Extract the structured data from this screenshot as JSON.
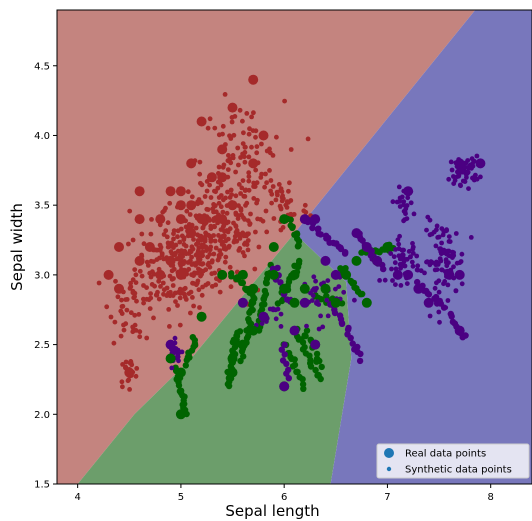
{
  "chart_data": {
    "type": "scatter",
    "title": "",
    "xlabel": "Sepal length",
    "ylabel": "Sepal width",
    "xlim": [
      3.8,
      8.4
    ],
    "ylim": [
      1.5,
      4.9
    ],
    "x_ticks": [
      4,
      5,
      6,
      7,
      8
    ],
    "y_ticks": [
      1.5,
      2.0,
      2.5,
      3.0,
      3.5,
      4.0,
      4.5
    ],
    "x_tick_labels": [
      "4",
      "5",
      "6",
      "7",
      "8"
    ],
    "y_tick_labels": [
      "1.5",
      "2.0",
      "2.5",
      "3.0",
      "3.5",
      "4.0",
      "4.5"
    ],
    "grid": false,
    "legend_position": "bottom-right",
    "legend": [
      {
        "label": "Real data points",
        "marker": "large-dot",
        "color": "#1f77b4"
      },
      {
        "label": "Synthetic data points",
        "marker": "small-dot",
        "color": "#1f77b4"
      }
    ],
    "regions": [
      {
        "color": "#c4847f",
        "polygon": [
          [
            3.8,
            1.5
          ],
          [
            3.8,
            4.9
          ],
          [
            7.85,
            4.9
          ],
          [
            6.1,
            3.3
          ],
          [
            5.1,
            2.4
          ],
          [
            4.55,
            2.0
          ],
          [
            4.0,
            1.5
          ]
        ]
      },
      {
        "color": "#6c9e6b",
        "polygon": [
          [
            4.0,
            1.5
          ],
          [
            4.55,
            2.0
          ],
          [
            5.1,
            2.4
          ],
          [
            6.1,
            3.3
          ],
          [
            6.6,
            2.95
          ],
          [
            6.65,
            2.4
          ],
          [
            6.45,
            1.5
          ]
        ]
      },
      {
        "color": "#7877bc",
        "polygon": [
          [
            7.85,
            4.9
          ],
          [
            8.4,
            4.9
          ],
          [
            8.4,
            1.5
          ],
          [
            6.45,
            1.5
          ],
          [
            6.65,
            2.4
          ],
          [
            6.6,
            2.95
          ],
          [
            6.1,
            3.3
          ]
        ]
      }
    ],
    "series": [
      {
        "class": "red",
        "color": "#a52a2a",
        "real_points": [
          [
            4.3,
            3.0
          ],
          [
            4.4,
            2.9
          ],
          [
            4.4,
            3.2
          ],
          [
            4.5,
            2.3
          ],
          [
            4.6,
            3.1
          ],
          [
            4.6,
            3.4
          ],
          [
            4.6,
            3.6
          ],
          [
            4.7,
            3.2
          ],
          [
            4.8,
            3.0
          ],
          [
            4.8,
            3.4
          ],
          [
            4.9,
            3.1
          ],
          [
            5.0,
            3.0
          ],
          [
            5.0,
            3.4
          ],
          [
            5.0,
            3.5
          ],
          [
            5.0,
            3.6
          ],
          [
            5.1,
            3.5
          ],
          [
            5.1,
            3.8
          ],
          [
            5.1,
            3.3
          ],
          [
            5.2,
            3.4
          ],
          [
            5.2,
            4.1
          ],
          [
            5.3,
            3.7
          ],
          [
            5.4,
            3.9
          ],
          [
            5.4,
            3.4
          ],
          [
            5.5,
            4.2
          ],
          [
            5.5,
            3.5
          ],
          [
            5.7,
            4.4
          ],
          [
            5.7,
            3.8
          ],
          [
            5.8,
            4.0
          ],
          [
            4.9,
            3.6
          ],
          [
            5.4,
            3.7
          ]
        ],
        "clusters": [
          {
            "center": [
              4.95,
              3.05
            ],
            "spread": [
              0.2,
              0.16
            ],
            "count": 160
          },
          {
            "center": [
              5.2,
              3.25
            ],
            "spread": [
              0.2,
              0.18
            ],
            "count": 170
          },
          {
            "center": [
              5.45,
              3.35
            ],
            "spread": [
              0.18,
              0.2
            ],
            "count": 120
          },
          {
            "center": [
              4.55,
              2.8
            ],
            "spread": [
              0.12,
              0.14
            ],
            "count": 50
          },
          {
            "center": [
              4.5,
              2.3
            ],
            "spread": [
              0.05,
              0.05
            ],
            "count": 20
          },
          {
            "center": [
              5.6,
              3.8
            ],
            "spread": [
              0.2,
              0.22
            ],
            "count": 90
          },
          {
            "center": [
              6.0,
              3.5
            ],
            "spread": [
              0.12,
              0.12
            ],
            "count": 40
          }
        ]
      },
      {
        "class": "green",
        "color": "#006400",
        "real_points": [
          [
            4.9,
            2.4
          ],
          [
            5.0,
            2.0
          ],
          [
            5.0,
            2.3
          ],
          [
            5.2,
            2.7
          ],
          [
            5.5,
            2.3
          ],
          [
            5.5,
            2.4
          ],
          [
            5.6,
            2.5
          ],
          [
            5.7,
            2.6
          ],
          [
            5.8,
            2.7
          ],
          [
            5.9,
            3.0
          ],
          [
            6.0,
            2.2
          ],
          [
            6.0,
            2.9
          ],
          [
            6.1,
            2.8
          ],
          [
            6.2,
            2.9
          ],
          [
            6.3,
            2.5
          ],
          [
            6.4,
            2.9
          ],
          [
            6.6,
            3.0
          ],
          [
            6.7,
            3.1
          ],
          [
            6.8,
            2.8
          ],
          [
            6.9,
            3.1
          ],
          [
            7.0,
            3.2
          ],
          [
            5.6,
            3.0
          ],
          [
            5.4,
            3.0
          ],
          [
            5.7,
            2.9
          ],
          [
            6.0,
            3.4
          ],
          [
            5.9,
            3.2
          ],
          [
            6.5,
            2.8
          ],
          [
            6.1,
            3.0
          ]
        ],
        "lines": [
          {
            "from": [
              4.95,
              2.35
            ],
            "to": [
              5.05,
              2.0
            ],
            "count": 22
          },
          {
            "from": [
              5.05,
              2.35
            ],
            "to": [
              5.15,
              2.55
            ],
            "count": 12
          },
          {
            "from": [
              5.45,
              2.2
            ],
            "to": [
              5.55,
              2.6
            ],
            "count": 30
          },
          {
            "from": [
              5.6,
              2.4
            ],
            "to": [
              5.7,
              2.85
            ],
            "count": 24
          },
          {
            "from": [
              5.75,
              2.6
            ],
            "to": [
              5.85,
              3.05
            ],
            "count": 24
          },
          {
            "from": [
              5.95,
              2.8
            ],
            "to": [
              6.15,
              3.1
            ],
            "count": 18
          },
          {
            "from": [
              6.0,
              2.5
            ],
            "to": [
              6.2,
              2.2
            ],
            "count": 16
          },
          {
            "from": [
              6.1,
              2.6
            ],
            "to": [
              6.35,
              2.25
            ],
            "count": 16
          },
          {
            "from": [
              6.2,
              2.6
            ],
            "to": [
              6.35,
              2.35
            ],
            "count": 12
          },
          {
            "from": [
              6.3,
              2.85
            ],
            "to": [
              6.55,
              2.8
            ],
            "count": 12
          },
          {
            "from": [
              6.55,
              3.05
            ],
            "to": [
              6.75,
              2.85
            ],
            "count": 16
          },
          {
            "from": [
              6.75,
              3.15
            ],
            "to": [
              7.05,
              3.2
            ],
            "count": 16
          },
          {
            "from": [
              5.5,
              3.0
            ],
            "to": [
              5.7,
              2.85
            ],
            "count": 14
          },
          {
            "from": [
              6.05,
              3.4
            ],
            "to": [
              6.15,
              3.2
            ],
            "count": 12
          }
        ]
      },
      {
        "class": "purple",
        "color": "#4b0082",
        "real_points": [
          [
            4.9,
            2.5
          ],
          [
            5.6,
            2.8
          ],
          [
            5.8,
            2.7
          ],
          [
            6.0,
            2.2
          ],
          [
            6.1,
            2.6
          ],
          [
            6.2,
            2.8
          ],
          [
            6.3,
            3.4
          ],
          [
            6.3,
            2.5
          ],
          [
            6.4,
            3.1
          ],
          [
            6.5,
            3.0
          ],
          [
            6.7,
            3.3
          ],
          [
            6.9,
            3.1
          ],
          [
            7.1,
            3.0
          ],
          [
            7.2,
            3.6
          ],
          [
            7.2,
            3.0
          ],
          [
            7.4,
            2.8
          ],
          [
            7.6,
            3.0
          ],
          [
            7.7,
            2.6
          ],
          [
            7.7,
            3.8
          ],
          [
            7.9,
            3.8
          ],
          [
            6.2,
            3.4
          ],
          [
            6.8,
            3.2
          ],
          [
            7.3,
            2.9
          ],
          [
            7.7,
            3.0
          ]
        ],
        "clusters": [
          {
            "center": [
              7.75,
              3.75
            ],
            "spread": [
              0.07,
              0.05
            ],
            "count": 60
          },
          {
            "center": [
              7.15,
              3.5
            ],
            "spread": [
              0.05,
              0.06
            ],
            "count": 22
          },
          {
            "center": [
              7.55,
              3.1
            ],
            "spread": [
              0.1,
              0.14
            ],
            "count": 90
          },
          {
            "center": [
              7.15,
              3.1
            ],
            "spread": [
              0.08,
              0.08
            ],
            "count": 50
          },
          {
            "center": [
              4.95,
              2.45
            ],
            "spread": [
              0.03,
              0.04
            ],
            "count": 22
          },
          {
            "center": [
              6.35,
              2.85
            ],
            "spread": [
              0.12,
              0.1
            ],
            "count": 40
          },
          {
            "center": [
              5.85,
              2.7
            ],
            "spread": [
              0.06,
              0.05
            ],
            "count": 14
          }
        ],
        "lines": [
          {
            "from": [
              6.2,
              3.4
            ],
            "to": [
              6.6,
              3.15
            ],
            "count": 22
          },
          {
            "from": [
              6.45,
              2.8
            ],
            "to": [
              6.75,
              2.4
            ],
            "count": 18
          },
          {
            "from": [
              6.7,
              3.3
            ],
            "to": [
              6.95,
              3.05
            ],
            "count": 16
          },
          {
            "from": [
              7.3,
              2.95
            ],
            "to": [
              7.55,
              2.75
            ],
            "count": 14
          },
          {
            "from": [
              7.6,
              2.7
            ],
            "to": [
              7.75,
              2.55
            ],
            "count": 10
          },
          {
            "from": [
              6.0,
              2.5
            ],
            "to": [
              6.05,
              2.25
            ],
            "count": 8
          },
          {
            "from": [
              5.9,
              3.05
            ],
            "to": [
              6.05,
              2.8
            ],
            "count": 10
          }
        ]
      }
    ]
  }
}
